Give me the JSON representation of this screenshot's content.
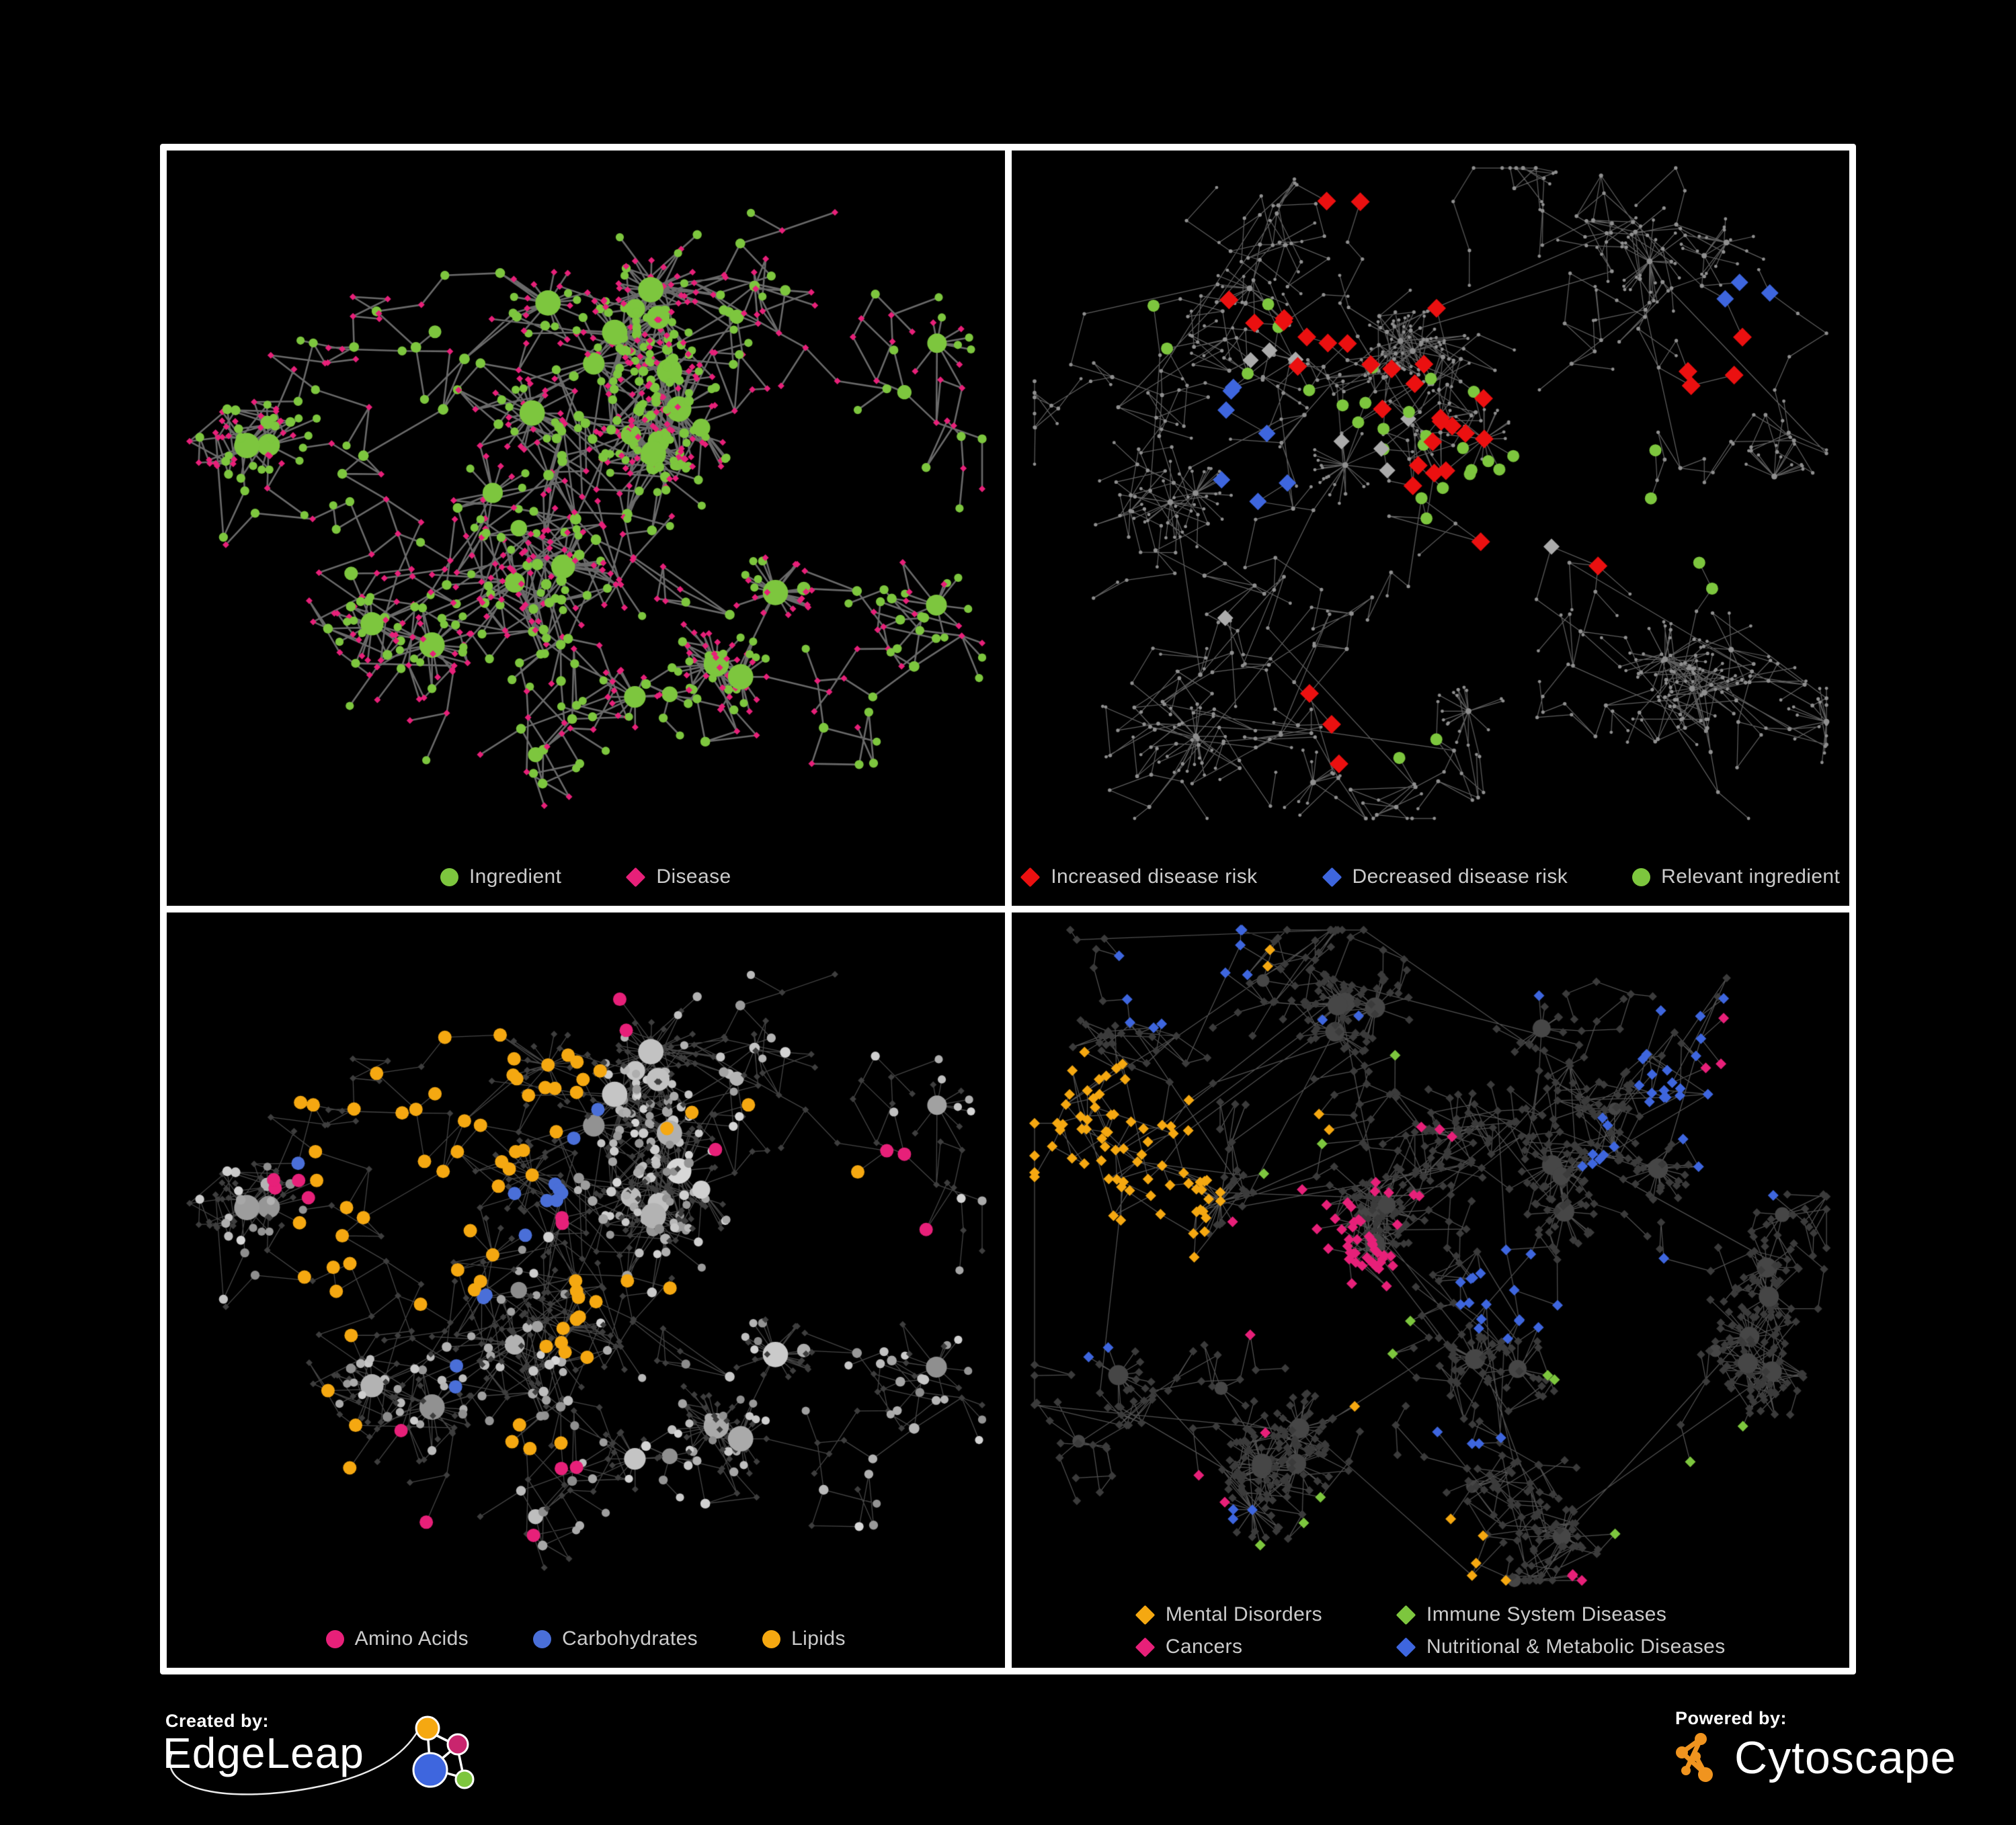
{
  "poster": {
    "background": "#000000",
    "frame_color": "#ffffff"
  },
  "colors": {
    "green": "#7DC63E",
    "magenta": "#E72079",
    "red": "#EB1010",
    "blue": "#3E66DE",
    "carb_blue": "#4A6FD8",
    "orange": "#F5A811",
    "gray_diamond": "#ABABAB",
    "legend_text": "#cbcbcb",
    "edgeleap_orange": "#F5A811",
    "edgeleap_magenta": "#C9256E",
    "edgeleap_blue": "#3E66DE",
    "edgeleap_green": "#7DC63E",
    "cytoscape_orange": "#F0941F"
  },
  "footer": {
    "created_by": "Created by:",
    "edgeleap": "EdgeLeap",
    "powered_by": "Powered by:",
    "cytoscape": "Cytoscape"
  },
  "panels": [
    {
      "id": "ingredient-disease-network",
      "legend": [
        {
          "label": "Ingredient",
          "shape": "circle",
          "color": "#7DC63E"
        },
        {
          "label": "Disease",
          "shape": "diamond",
          "color": "#E72079"
        }
      ],
      "network": {
        "seed": 7,
        "burst": 0.045,
        "cross": 160,
        "crossDist": 170,
        "circleProb": 0.4,
        "style": {
          "mode": "ingredient",
          "edgeColor": "rgba(125,125,125,0.85)",
          "edgeWidth": 2.6,
          "circleColor": "#7DC63E",
          "diamondColor": "#E72079"
        },
        "clusters": [
          [
            0.42,
            0.5,
            130,
            70
          ],
          [
            0.22,
            0.56,
            70,
            62
          ],
          [
            0.58,
            0.42,
            85,
            64
          ],
          [
            0.32,
            0.24,
            60,
            62
          ],
          [
            0.68,
            0.22,
            55,
            66
          ],
          [
            0.76,
            0.58,
            45,
            60
          ],
          [
            0.44,
            0.8,
            50,
            60
          ],
          [
            0.12,
            0.36,
            25,
            60
          ],
          [
            0.88,
            0.32,
            22,
            56
          ],
          [
            0.6,
            0.72,
            30,
            56
          ]
        ],
        "highlights": []
      }
    },
    {
      "id": "disease-risk-network",
      "legend": [
        {
          "label": "Increased disease risk",
          "shape": "diamond",
          "color": "#EB1010"
        },
        {
          "label": "Decreased disease risk",
          "shape": "diamond",
          "color": "#3E66DE"
        },
        {
          "label": "Relevant ingredient",
          "shape": "circle",
          "color": "#7DC63E"
        }
      ],
      "network": {
        "seed": 21,
        "burst": 0.032,
        "cross": 80,
        "crossDist": 420,
        "circleProb": 1.0,
        "style": {
          "mode": "plain",
          "edgeColor": "rgba(110,110,110,0.85)",
          "edgeWidth": 1.25,
          "dotColor": "#8F8F8F"
        },
        "clusters": [
          [
            0.3,
            0.3,
            110,
            58
          ],
          [
            0.52,
            0.31,
            140,
            54
          ],
          [
            0.75,
            0.17,
            65,
            60
          ],
          [
            0.12,
            0.3,
            55,
            58
          ],
          [
            0.4,
            0.66,
            75,
            60
          ],
          [
            0.7,
            0.55,
            65,
            60
          ],
          [
            0.86,
            0.7,
            45,
            56
          ],
          [
            0.2,
            0.76,
            55,
            60
          ],
          [
            0.55,
            0.86,
            35,
            56
          ],
          [
            0.9,
            0.35,
            30,
            56
          ],
          [
            0.6,
            0.05,
            25,
            56
          ]
        ],
        "highlights": [
          {
            "shape": "diamond",
            "color": "#EB1010",
            "size": 14,
            "count": 26,
            "anchors": [
              [
                0.46,
                0.3
              ],
              [
                0.33,
                0.27
              ],
              [
                0.55,
                0.38
              ],
              [
                0.5,
                0.47
              ]
            ],
            "radius": 0.1
          },
          {
            "shape": "diamond",
            "color": "#EB1010",
            "size": 14,
            "count": 6,
            "anchors": [
              [
                0.13,
                0.33
              ],
              [
                0.42,
                0.05
              ],
              [
                0.62,
                0.16
              ],
              [
                0.83,
                0.3
              ]
            ],
            "radius": 0.04
          },
          {
            "shape": "diamond",
            "color": "#EB1010",
            "size": 14,
            "count": 4,
            "anchors": [
              [
                0.36,
                0.74
              ],
              [
                0.42,
                0.8
              ],
              [
                0.7,
                0.55
              ]
            ],
            "radius": 0.04
          },
          {
            "shape": "diamond",
            "color": "#3E66DE",
            "size": 13,
            "count": 7,
            "anchors": [
              [
                0.27,
                0.35
              ],
              [
                0.3,
                0.42
              ]
            ],
            "radius": 0.05
          },
          {
            "shape": "diamond",
            "color": "#3E66DE",
            "size": 13,
            "count": 3,
            "anchors": [
              [
                0.875,
                0.17
              ]
            ],
            "radius": 0.03
          },
          {
            "shape": "diamond",
            "color": "#ABABAB",
            "size": 12,
            "count": 9,
            "anchors": [
              [
                0.32,
                0.28
              ],
              [
                0.44,
                0.38
              ],
              [
                0.52,
                0.44
              ],
              [
                0.6,
                0.52
              ],
              [
                0.25,
                0.6
              ]
            ],
            "radius": 0.05
          },
          {
            "shape": "circle",
            "color": "#7DC63E",
            "size": 9,
            "count": 24,
            "anchors": [
              [
                0.45,
                0.33
              ],
              [
                0.5,
                0.4
              ],
              [
                0.3,
                0.25
              ],
              [
                0.56,
                0.44
              ]
            ],
            "radius": 0.1
          },
          {
            "shape": "circle",
            "color": "#7DC63E",
            "size": 9,
            "count": 8,
            "anchors": [
              [
                0.12,
                0.38
              ],
              [
                0.15,
                0.25
              ],
              [
                0.9,
                0.55
              ],
              [
                0.5,
                0.78
              ],
              [
                0.7,
                0.43
              ]
            ],
            "radius": 0.05
          }
        ]
      }
    },
    {
      "id": "nutrient-class-network",
      "legend": [
        {
          "label": "Amino Acids",
          "shape": "circle",
          "color": "#E72079"
        },
        {
          "label": "Carbohydrates",
          "shape": "circle",
          "color": "#4A6FD8"
        },
        {
          "label": "Lipids",
          "shape": "circle",
          "color": "#F5A811"
        }
      ],
      "network": {
        "sameGraphAs": 0,
        "style": {
          "mode": "grayscale",
          "edgeColor": "rgba(165,165,165,0.42)",
          "edgeWidth": 1.3,
          "diamondColor": "#3E3E3E"
        },
        "highlights": [
          {
            "shape": "circle",
            "color": "#F5A811",
            "size": 10,
            "count": 34,
            "circlesOnly": true,
            "anchors": [
              [
                0.35,
                0.24
              ],
              [
                0.3,
                0.21
              ],
              [
                0.4,
                0.21
              ]
            ],
            "radius": 0.06
          },
          {
            "shape": "circle",
            "color": "#F5A811",
            "size": 10,
            "count": 16,
            "circlesOnly": true,
            "anchors": [
              [
                0.25,
                0.4
              ],
              [
                0.3,
                0.45
              ],
              [
                0.2,
                0.48
              ]
            ],
            "radius": 0.06
          },
          {
            "shape": "circle",
            "color": "#F5A811",
            "size": 10,
            "count": 12,
            "circlesOnly": true,
            "anchors": [
              [
                0.47,
                0.55
              ],
              [
                0.52,
                0.5
              ]
            ],
            "radius": 0.04
          },
          {
            "shape": "circle",
            "color": "#F5A811",
            "size": 10,
            "count": 12,
            "circlesOnly": true,
            "anchors": [
              [
                0.6,
                0.3
              ],
              [
                0.15,
                0.6
              ],
              [
                0.42,
                0.7
              ],
              [
                0.65,
                0.55
              ],
              [
                0.23,
                0.73
              ],
              [
                0.78,
                0.3
              ]
            ],
            "radius": 0.05
          },
          {
            "shape": "circle",
            "color": "#4A6FD8",
            "size": 10,
            "count": 9,
            "circlesOnly": true,
            "anchors": [
              [
                0.36,
                0.26
              ],
              [
                0.34,
                0.3
              ]
            ],
            "radius": 0.045
          },
          {
            "shape": "circle",
            "color": "#4A6FD8",
            "size": 10,
            "count": 5,
            "circlesOnly": true,
            "anchors": [
              [
                0.38,
                0.52
              ],
              [
                0.13,
                0.17
              ],
              [
                0.86,
                0.53
              ],
              [
                0.33,
                0.63
              ]
            ],
            "radius": 0.03
          },
          {
            "shape": "circle",
            "color": "#E72079",
            "size": 10,
            "count": 17,
            "circlesOnly": true,
            "anchors": [
              [
                0.47,
                0.03
              ],
              [
                0.12,
                0.35
              ],
              [
                0.25,
                0.33
              ],
              [
                0.46,
                0.36
              ],
              [
                0.7,
                0.35
              ],
              [
                0.78,
                0.42
              ],
              [
                0.3,
                0.62
              ],
              [
                0.42,
                0.62
              ],
              [
                0.48,
                0.72
              ],
              [
                0.56,
                0.62
              ],
              [
                0.15,
                0.82
              ],
              [
                0.45,
                0.85
              ],
              [
                0.6,
                0.78
              ],
              [
                0.9,
                0.32
              ]
            ],
            "radius": 0.035
          }
        ]
      }
    },
    {
      "id": "disease-category-network",
      "legend_columns": 2,
      "legend": [
        {
          "label": "Mental Disorders",
          "shape": "diamond",
          "color": "#F5A811"
        },
        {
          "label": "Immune System Diseases",
          "shape": "diamond",
          "color": "#7DC63E"
        },
        {
          "label": "Cancers",
          "shape": "diamond",
          "color": "#E72079"
        },
        {
          "label": "Nutritional & Metabolic Diseases",
          "shape": "diamond",
          "color": "#3E66DE"
        }
      ],
      "network": {
        "seed": 33,
        "burst": 0.028,
        "cross": 130,
        "crossDist": 380,
        "circleProb": 0.0,
        "style": {
          "mode": "darkdiamond",
          "edgeColor": "rgba(115,115,115,0.7)",
          "edgeWidth": 1.25,
          "diamondColor": "#3B3B3B",
          "hubColor": "#464646"
        },
        "clusters": [
          [
            0.15,
            0.33,
            115,
            50
          ],
          [
            0.42,
            0.4,
            150,
            48
          ],
          [
            0.6,
            0.5,
            80,
            50
          ],
          [
            0.72,
            0.26,
            80,
            52
          ],
          [
            0.3,
            0.09,
            55,
            52
          ],
          [
            0.85,
            0.14,
            55,
            50
          ],
          [
            0.25,
            0.63,
            70,
            52
          ],
          [
            0.55,
            0.76,
            60,
            52
          ],
          [
            0.84,
            0.58,
            60,
            52
          ],
          [
            0.6,
            0.92,
            35,
            48
          ],
          [
            0.92,
            0.4,
            25,
            48
          ],
          [
            0.08,
            0.7,
            30,
            50
          ]
        ],
        "highlights": [
          {
            "shape": "diamond",
            "color": "#F5A811",
            "size": 8,
            "count": 75,
            "anchors": [
              [
                0.15,
                0.3
              ],
              [
                0.11,
                0.35
              ],
              [
                0.19,
                0.35
              ],
              [
                0.15,
                0.4
              ],
              [
                0.08,
                0.3
              ]
            ],
            "radius": 0.055
          },
          {
            "shape": "diamond",
            "color": "#F5A811",
            "size": 8,
            "count": 10,
            "anchors": [
              [
                0.33,
                0.06
              ],
              [
                0.44,
                0.63
              ],
              [
                0.25,
                0.55
              ],
              [
                0.5,
                0.9
              ],
              [
                0.36,
                0.25
              ]
            ],
            "radius": 0.035
          },
          {
            "shape": "diamond",
            "color": "#E72079",
            "size": 8,
            "count": 48,
            "anchors": [
              [
                0.38,
                0.42
              ],
              [
                0.43,
                0.47
              ],
              [
                0.35,
                0.48
              ],
              [
                0.45,
                0.38
              ]
            ],
            "radius": 0.05
          },
          {
            "shape": "diamond",
            "color": "#E72079",
            "size": 8,
            "count": 12,
            "anchors": [
              [
                0.5,
                0.28
              ],
              [
                0.28,
                0.68
              ],
              [
                0.9,
                0.2
              ],
              [
                0.93,
                0.17
              ],
              [
                0.55,
                0.96
              ],
              [
                0.7,
                0.9
              ],
              [
                0.18,
                0.75
              ]
            ],
            "radius": 0.03
          },
          {
            "shape": "diamond",
            "color": "#3E66DE",
            "size": 8,
            "count": 40,
            "anchors": [
              [
                0.57,
                0.53
              ],
              [
                0.6,
                0.5
              ],
              [
                0.74,
                0.28
              ],
              [
                0.78,
                0.22
              ],
              [
                0.7,
                0.33
              ]
            ],
            "radius": 0.045
          },
          {
            "shape": "diamond",
            "color": "#3E66DE",
            "size": 8,
            "count": 30,
            "anchors": [
              [
                0.28,
                0.06
              ],
              [
                0.18,
                0.1
              ],
              [
                0.6,
                0.05
              ],
              [
                0.83,
                0.12
              ],
              [
                0.88,
                0.3
              ],
              [
                0.4,
                0.16
              ],
              [
                0.13,
                0.55
              ],
              [
                0.25,
                0.78
              ],
              [
                0.55,
                0.7
              ],
              [
                0.8,
                0.45
              ]
            ],
            "radius": 0.04
          },
          {
            "shape": "diamond",
            "color": "#7DC63E",
            "size": 8,
            "count": 13,
            "anchors": [
              [
                0.35,
                0.3
              ],
              [
                0.42,
                0.55
              ],
              [
                0.3,
                0.9
              ],
              [
                0.6,
                0.4
              ],
              [
                0.47,
                0.2
              ],
              [
                0.68,
                0.6
              ],
              [
                0.9,
                0.88
              ],
              [
                0.37,
                0.8
              ]
            ],
            "radius": 0.03
          }
        ]
      }
    }
  ]
}
